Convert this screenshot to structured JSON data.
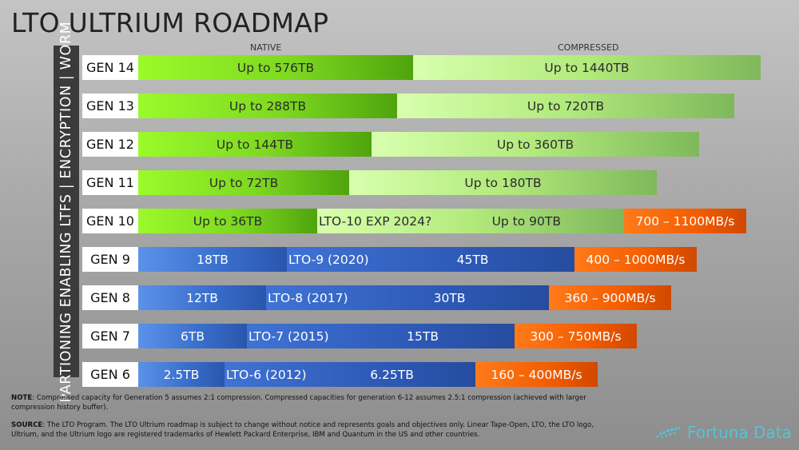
{
  "title": "LTO ULTRIUM ROADMAP",
  "column_labels": {
    "native": "NATIVE",
    "compressed": "COMPRESSED"
  },
  "side_label": "PARTIONING ENABLING LTFS | ENCRYPTION | WORM",
  "chart_data": {
    "type": "bar",
    "title": "LTO ULTRIUM ROADMAP",
    "orientation": "horizontal",
    "stacked": true,
    "categories": [
      "GEN 14",
      "GEN 13",
      "GEN 12",
      "GEN 11",
      "GEN 10",
      "GEN 9",
      "GEN 8",
      "GEN 7",
      "GEN 6"
    ],
    "series": [
      {
        "name": "NATIVE",
        "values": [
          576,
          288,
          144,
          72,
          36,
          18,
          12,
          6,
          2.5
        ],
        "unit": "TB",
        "labels": [
          "Up to 576TB",
          "Up to 288TB",
          "Up to 144TB",
          "Up to 72TB",
          "Up to 36TB",
          "18TB",
          "12TB",
          "6TB",
          "2.5TB"
        ]
      },
      {
        "name": "COMPRESSED",
        "values": [
          1440,
          720,
          360,
          180,
          90,
          45,
          30,
          15,
          6.25
        ],
        "unit": "TB",
        "labels": [
          "Up to 1440TB",
          "Up to 720TB",
          "Up to 360TB",
          "Up to 180TB",
          "Up to 90TB",
          "45TB",
          "30TB",
          "15TB",
          "6.25TB"
        ]
      }
    ],
    "release_labels": [
      "",
      "",
      "",
      "",
      "LTO-10 EXP 2024?",
      "LTO-9 (2020)",
      "LTO-8 (2017)",
      "LTO-7 (2015)",
      "LTO-6 (2012)"
    ],
    "transfer_rates": [
      "",
      "",
      "",
      "",
      "700 – 1100MB/s",
      "400 – 1000MB/s",
      "360 – 900MB/s",
      "300 – 750MB/s",
      "160 – 400MB/s"
    ],
    "xlabel": "",
    "ylabel": ""
  },
  "note": {
    "label": "NOTE",
    "text": ": Compressed capacity for Generation 5 assumes 2:1 compression.  Compressed capacities for generation 6-12 assumes 2.5:1 compression (achieved with larger compression history buffer)."
  },
  "source": {
    "label": "SOURCE",
    "text": ": The LTO Program.  The LTO Ultrium roadmap is subject to change without notice and represents goals and objectives only.  Linear Tape-Open, LTO, the LTO logo, Ultrium, and the Ultrium logo are registered trademarks of Hewlett Packard Enterprise, IBM and Quantum in the US and other countries."
  },
  "logo": {
    "text": "Fortuna Data",
    "color": "#4fc6d7"
  }
}
